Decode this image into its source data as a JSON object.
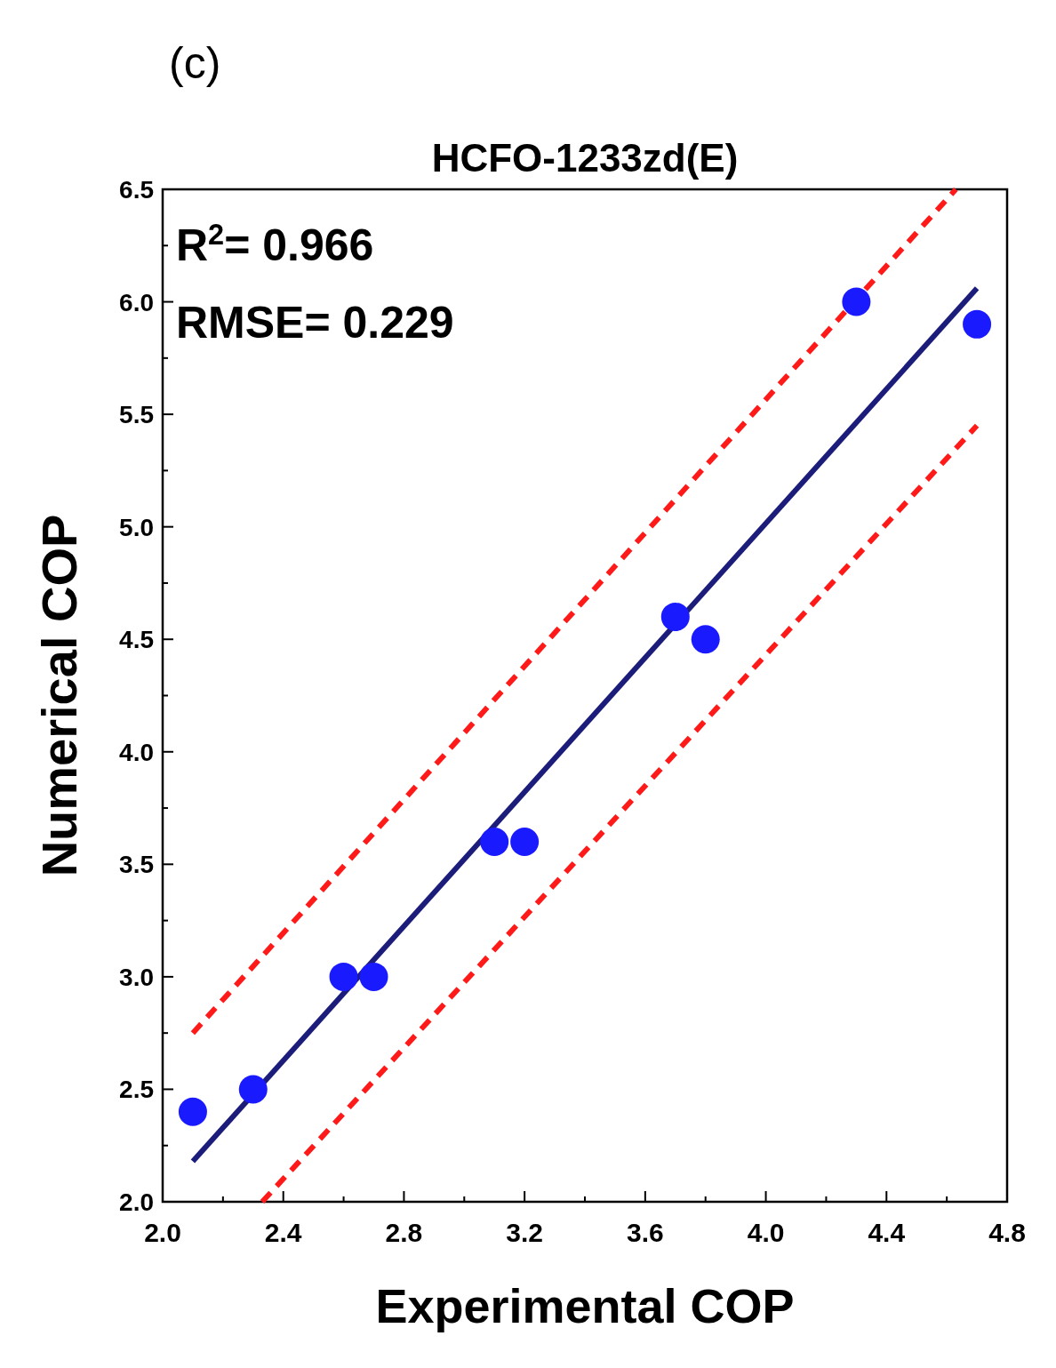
{
  "chart_data": {
    "type": "scatter",
    "title": "HCFO-1233zd(E)",
    "xlabel": "Experimental COP",
    "ylabel": "Numerical COP",
    "annotations": [
      "(c)",
      "R$^{2}$= 0.966",
      "RMSE= 0.229"
    ],
    "xlim": [
      2.0,
      4.8
    ],
    "xticks": [
      {
        "value": 2.0,
        "label": "2.0"
      },
      2.4,
      2.8,
      3.2,
      3.6,
      {
        "value": 4.0,
        "label": "4.0"
      },
      4.4,
      4.8
    ],
    "ylim": [
      2.0,
      6.5
    ],
    "yticks": [
      {
        "value": 2.0,
        "label": "2.0"
      },
      2.5,
      {
        "value": 3.0,
        "label": "3.0"
      },
      3.5,
      {
        "value": 4.0,
        "label": "4.0"
      },
      4.5,
      {
        "value": 5.0,
        "label": "5.0"
      },
      5.5,
      {
        "value": 6.0,
        "label": "6.0"
      },
      6.5
    ],
    "grid": false,
    "marker": "circle",
    "series": [
      {
        "color": "#1a1aff",
        "x": [
          2.1,
          2.3,
          2.6,
          2.7,
          3.1,
          3.2,
          3.7,
          3.8,
          4.3,
          4.7
        ],
        "values": [
          2.4,
          2.5,
          3.0,
          3.0,
          3.6,
          3.6,
          4.6,
          4.5,
          6.0,
          5.9
        ]
      },
      {
        "type": "line",
        "color": "#1c1c7a",
        "line_style": "solid",
        "marker": "none",
        "x": [
          2.1,
          4.7
        ],
        "values": [
          2.18,
          6.06
        ]
      },
      {
        "type": "line",
        "color": "#ff1a1a",
        "line_style": "dashed",
        "marker": "none",
        "x": [
          2.1,
          4.63
        ],
        "values": [
          2.75,
          6.5
        ]
      },
      {
        "type": "line",
        "color": "#ff1a1a",
        "line_style": "dashed",
        "marker": "none",
        "x": [
          2.33,
          4.7
        ],
        "values": [
          2.0,
          5.45
        ]
      }
    ]
  }
}
